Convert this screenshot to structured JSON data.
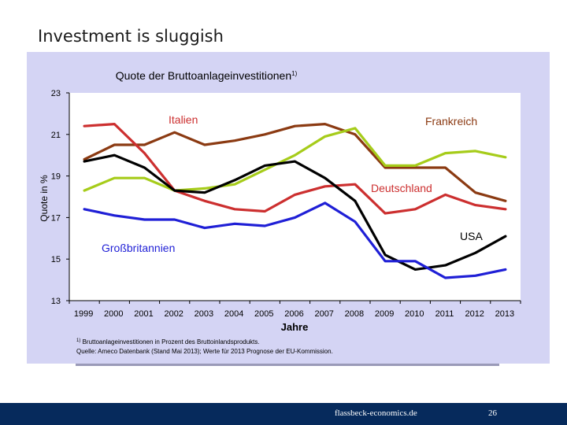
{
  "slide_title": "Investment is sluggish",
  "chart_data": {
    "type": "line",
    "title": "Quote der Bruttoanlageinvestitionen",
    "title_sup": "1)",
    "xlabel": "Jahre",
    "ylabel": "Quote in %",
    "ylim": [
      13,
      23
    ],
    "yticks": [
      13,
      15,
      17,
      19,
      21,
      23
    ],
    "x": [
      "1999",
      "2000",
      "2001",
      "2002",
      "2003",
      "2004",
      "2005",
      "2006",
      "2007",
      "2008",
      "2009",
      "2010",
      "2011",
      "2012",
      "2013"
    ],
    "grid": false,
    "series": [
      {
        "name": "Frankreich",
        "color": "#8b3a12",
        "values": [
          19.8,
          20.5,
          20.5,
          21.1,
          20.5,
          20.7,
          21.0,
          21.4,
          21.5,
          21.0,
          19.4,
          19.4,
          19.4,
          18.2,
          17.8
        ]
      },
      {
        "name": "Italien",
        "color": "#cc2f2f",
        "values": [
          21.4,
          21.5,
          20.1,
          18.3,
          17.8,
          17.4,
          17.3,
          18.1,
          18.5,
          18.6,
          17.2,
          17.4,
          18.1,
          17.6,
          17.4
        ]
      },
      {
        "name": "Deutschland",
        "color": "#a6cc1a",
        "values": [
          18.3,
          18.9,
          18.9,
          18.3,
          18.4,
          18.6,
          19.3,
          20.0,
          20.9,
          21.3,
          19.5,
          19.5,
          20.1,
          20.2,
          19.9
        ]
      },
      {
        "name": "USA",
        "color": "#000000",
        "values": [
          19.7,
          20.0,
          19.4,
          18.3,
          18.2,
          18.8,
          19.5,
          19.7,
          18.9,
          17.8,
          15.2,
          14.5,
          14.7,
          15.3,
          16.1
        ]
      },
      {
        "name": "Großbritannien",
        "color": "#1f1fd6",
        "values": [
          17.4,
          17.1,
          16.9,
          16.9,
          16.5,
          16.7,
          16.6,
          17.0,
          17.7,
          16.8,
          14.9,
          14.9,
          14.1,
          14.2,
          14.5
        ]
      }
    ],
    "footnote_sup": "1)",
    "footnote_line1": "Bruttoanlageinvestitionen in Prozent des Bruttoinlandsprodukts.",
    "footnote_line2": "Quelle: Ameco Datenbank (Stand Mai 2013); Werte für 2013 Prognose der EU-Kommission."
  },
  "footer": {
    "source": "flassbeck-economics.de",
    "page": "26"
  },
  "colors": {
    "panel": "#d4d4f4",
    "plot_bg": "#ffffff",
    "footer_bar": "#062a5c"
  }
}
